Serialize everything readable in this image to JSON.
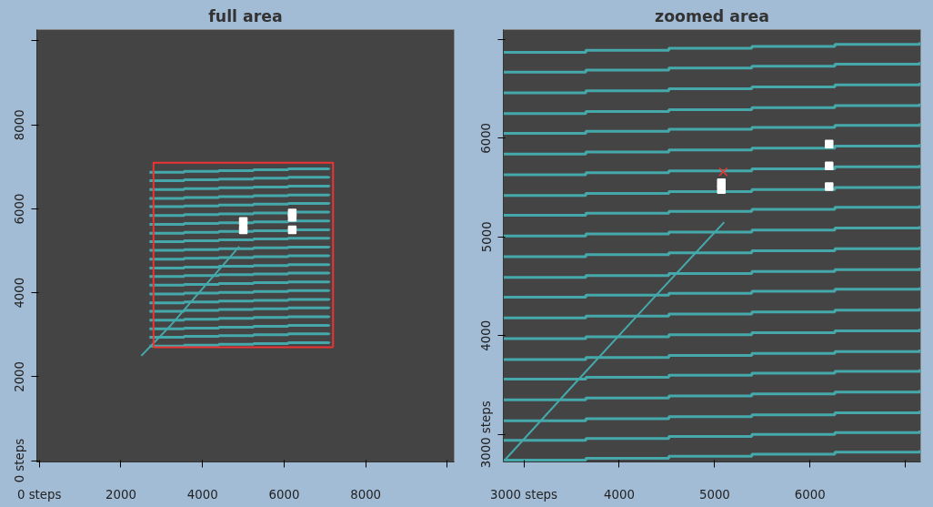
{
  "chart_data": [
    {
      "type": "step",
      "title": "full area",
      "xlim": [
        -60,
        10170
      ],
      "ylim": [
        -30,
        10270
      ],
      "xticks": [
        {
          "value": 0,
          "label": "0 steps"
        },
        2000,
        4000,
        6000,
        8000,
        {
          "value": 10000,
          "label": null
        }
      ],
      "yticks": [
        {
          "value": 0,
          "label": "0 steps"
        },
        2000,
        4000,
        6000,
        8000,
        {
          "value": 10000,
          "label": null
        }
      ],
      "series": [
        {
          "color": "#45a9ab",
          "x": [
            2700,
            3550,
            4400,
            5250,
            6100,
            7100
          ],
          "values": [
            6870,
            6890,
            6910,
            6930,
            6950,
            6970
          ]
        },
        {
          "color": "#45a9ab",
          "x": [
            2700,
            3550,
            4400,
            5250,
            6100,
            7100
          ],
          "values": [
            6670,
            6690,
            6710,
            6730,
            6750,
            6770
          ]
        },
        {
          "color": "#45a9ab",
          "x": [
            2700,
            3550,
            4400,
            5250,
            6100,
            7100
          ],
          "values": [
            6460,
            6480,
            6500,
            6520,
            6540,
            6560
          ]
        },
        {
          "color": "#45a9ab",
          "x": [
            2700,
            3550,
            4400,
            5250,
            6100,
            7100
          ],
          "values": [
            6250,
            6270,
            6290,
            6310,
            6330,
            6350
          ]
        },
        {
          "color": "#45a9ab",
          "x": [
            2700,
            3550,
            4400,
            5250,
            6100,
            7100
          ],
          "values": [
            6050,
            6070,
            6090,
            6110,
            6130,
            6150
          ]
        },
        {
          "color": "#45a9ab",
          "x": [
            2700,
            3550,
            4400,
            5250,
            6100,
            7100
          ],
          "values": [
            5840,
            5860,
            5880,
            5900,
            5920,
            5940
          ]
        },
        {
          "color": "#45a9ab",
          "x": [
            2700,
            3550,
            4400,
            5250,
            6100,
            7100
          ],
          "values": [
            5630,
            5650,
            5670,
            5690,
            5710,
            5730
          ]
        },
        {
          "color": "#45a9ab",
          "x": [
            2700,
            3550,
            4400,
            5250,
            6100,
            7100
          ],
          "values": [
            5420,
            5440,
            5460,
            5480,
            5500,
            5520
          ]
        },
        {
          "color": "#45a9ab",
          "x": [
            2700,
            3550,
            4400,
            5250,
            6100,
            7100
          ],
          "values": [
            5220,
            5240,
            5260,
            5280,
            5300,
            5320
          ]
        },
        {
          "color": "#45a9ab",
          "x": [
            2700,
            3550,
            4400,
            5250,
            6100,
            7100
          ],
          "values": [
            5010,
            5030,
            5050,
            5070,
            5090,
            5110
          ]
        },
        {
          "color": "#45a9ab",
          "x": [
            2700,
            3550,
            4400,
            5250,
            6100,
            7100
          ],
          "values": [
            4800,
            4820,
            4840,
            4860,
            4880,
            4900
          ]
        },
        {
          "color": "#45a9ab",
          "x": [
            2700,
            3550,
            4400,
            5250,
            6100,
            7100
          ],
          "values": [
            4590,
            4610,
            4630,
            4650,
            4670,
            4690
          ]
        },
        {
          "color": "#45a9ab",
          "x": [
            2700,
            3550,
            4400,
            5250,
            6100,
            7100
          ],
          "values": [
            4390,
            4410,
            4430,
            4450,
            4470,
            4490
          ]
        },
        {
          "color": "#45a9ab",
          "x": [
            2700,
            3550,
            4400,
            5250,
            6100,
            7100
          ],
          "values": [
            4180,
            4200,
            4220,
            4240,
            4260,
            4280
          ]
        },
        {
          "color": "#45a9ab",
          "x": [
            2700,
            3550,
            4400,
            5250,
            6100,
            7100
          ],
          "values": [
            3970,
            3990,
            4010,
            4030,
            4050,
            4070
          ]
        },
        {
          "color": "#45a9ab",
          "x": [
            2700,
            3550,
            4400,
            5250,
            6100,
            7100
          ],
          "values": [
            3760,
            3780,
            3800,
            3820,
            3840,
            3860
          ]
        },
        {
          "color": "#45a9ab",
          "x": [
            2700,
            3550,
            4400,
            5250,
            6100,
            7100
          ],
          "values": [
            3560,
            3580,
            3600,
            3620,
            3640,
            3660
          ]
        },
        {
          "color": "#45a9ab",
          "x": [
            2700,
            3550,
            4400,
            5250,
            6100,
            7100
          ],
          "values": [
            3350,
            3370,
            3390,
            3410,
            3430,
            3450
          ]
        },
        {
          "color": "#45a9ab",
          "x": [
            2700,
            3550,
            4400,
            5250,
            6100,
            7100
          ],
          "values": [
            3140,
            3160,
            3180,
            3200,
            3220,
            3240
          ]
        },
        {
          "color": "#45a9ab",
          "x": [
            2700,
            3550,
            4400,
            5250,
            6100,
            7100
          ],
          "values": [
            2940,
            2960,
            2980,
            3000,
            3020,
            3040
          ]
        },
        {
          "color": "#45a9ab",
          "x": [
            2700,
            3550,
            4400,
            5250,
            6100,
            7100
          ],
          "values": [
            2730,
            2750,
            2770,
            2790,
            2810,
            2830
          ]
        },
        {
          "type": "line",
          "color": "#45a9ab",
          "x": [
            2500,
            3200,
            4000,
            4900
          ],
          "values": [
            2500,
            3200,
            4100,
            5100
          ]
        },
        {
          "type": "line",
          "color": "#ee3333",
          "x": [
            2800,
            2800,
            7200,
            7200
          ],
          "values": [
            2700,
            7100,
            7100,
            2700
          ]
        },
        {
          "type": "line",
          "color": "#ee3333",
          "x": [
            2800,
            7200
          ],
          "values": [
            2700,
            2700
          ]
        },
        {
          "type": "scatter",
          "marker": "square",
          "color": "#ffffff",
          "x": [
            5000,
            5000,
            6200,
            6200,
            6200
          ],
          "values": [
            5700,
            5500,
            5900,
            5800,
            5500
          ]
        }
      ]
    },
    {
      "type": "step",
      "title": "zoomed area",
      "xlim": [
        2785,
        7160
      ],
      "ylim": [
        2722,
        7100
      ],
      "xticks": [
        {
          "value": 3000,
          "label": "3000 steps"
        },
        4000,
        5000,
        6000,
        {
          "value": 7000,
          "label": null
        }
      ],
      "yticks": [
        {
          "value": 3000,
          "label": "3000 steps"
        },
        4000,
        5000,
        6000,
        {
          "value": 7000,
          "label": null
        }
      ],
      "series": [
        {
          "color": "#45a9ab",
          "x": [
            2790,
            3650,
            4520,
            5390,
            6260,
            7150
          ],
          "values": [
            6870,
            6890,
            6910,
            6930,
            6950,
            6970
          ]
        },
        {
          "color": "#45a9ab",
          "x": [
            2790,
            3650,
            4520,
            5390,
            6260,
            7150
          ],
          "values": [
            6670,
            6690,
            6710,
            6730,
            6750,
            6770
          ]
        },
        {
          "color": "#45a9ab",
          "x": [
            2790,
            3650,
            4520,
            5390,
            6260,
            7150
          ],
          "values": [
            6460,
            6480,
            6500,
            6520,
            6540,
            6560
          ]
        },
        {
          "color": "#45a9ab",
          "x": [
            2790,
            3650,
            4520,
            5390,
            6260,
            7150
          ],
          "values": [
            6250,
            6270,
            6290,
            6310,
            6330,
            6350
          ]
        },
        {
          "color": "#45a9ab",
          "x": [
            2790,
            3650,
            4520,
            5390,
            6260,
            7150
          ],
          "values": [
            6050,
            6070,
            6090,
            6110,
            6130,
            6150
          ]
        },
        {
          "color": "#45a9ab",
          "x": [
            2790,
            3650,
            4520,
            5390,
            6260,
            7150
          ],
          "values": [
            5840,
            5860,
            5880,
            5900,
            5920,
            5940
          ]
        },
        {
          "color": "#45a9ab",
          "x": [
            2790,
            3650,
            4520,
            5390,
            6260,
            7150
          ],
          "values": [
            5630,
            5650,
            5670,
            5690,
            5710,
            5730
          ]
        },
        {
          "color": "#45a9ab",
          "x": [
            2790,
            3650,
            4520,
            5390,
            6260,
            7150
          ],
          "values": [
            5420,
            5440,
            5460,
            5480,
            5500,
            5520
          ]
        },
        {
          "color": "#45a9ab",
          "x": [
            2790,
            3650,
            4520,
            5390,
            6260,
            7150
          ],
          "values": [
            5220,
            5240,
            5260,
            5280,
            5300,
            5320
          ]
        },
        {
          "color": "#45a9ab",
          "x": [
            2790,
            3650,
            4520,
            5390,
            6260,
            7150
          ],
          "values": [
            5010,
            5030,
            5050,
            5070,
            5090,
            5110
          ]
        },
        {
          "color": "#45a9ab",
          "x": [
            2790,
            3650,
            4520,
            5390,
            6260,
            7150
          ],
          "values": [
            4800,
            4820,
            4840,
            4860,
            4880,
            4900
          ]
        },
        {
          "color": "#45a9ab",
          "x": [
            2790,
            3650,
            4520,
            5390,
            6260,
            7150
          ],
          "values": [
            4590,
            4610,
            4630,
            4650,
            4670,
            4690
          ]
        },
        {
          "color": "#45a9ab",
          "x": [
            2790,
            3650,
            4520,
            5390,
            6260,
            7150
          ],
          "values": [
            4390,
            4410,
            4430,
            4450,
            4470,
            4490
          ]
        },
        {
          "color": "#45a9ab",
          "x": [
            2790,
            3650,
            4520,
            5390,
            6260,
            7150
          ],
          "values": [
            4180,
            4200,
            4220,
            4240,
            4260,
            4280
          ]
        },
        {
          "color": "#45a9ab",
          "x": [
            2790,
            3650,
            4520,
            5390,
            6260,
            7150
          ],
          "values": [
            3970,
            3990,
            4010,
            4030,
            4050,
            4070
          ]
        },
        {
          "color": "#45a9ab",
          "x": [
            2790,
            3650,
            4520,
            5390,
            6260,
            7150
          ],
          "values": [
            3760,
            3780,
            3800,
            3820,
            3840,
            3860
          ]
        },
        {
          "color": "#45a9ab",
          "x": [
            2790,
            3650,
            4520,
            5390,
            6260,
            7150
          ],
          "values": [
            3560,
            3580,
            3600,
            3620,
            3640,
            3660
          ]
        },
        {
          "color": "#45a9ab",
          "x": [
            2790,
            3650,
            4520,
            5390,
            6260,
            7150
          ],
          "values": [
            3350,
            3370,
            3390,
            3410,
            3430,
            3450
          ]
        },
        {
          "color": "#45a9ab",
          "x": [
            2790,
            3650,
            4520,
            5390,
            6260,
            7150
          ],
          "values": [
            3140,
            3160,
            3180,
            3200,
            3220,
            3240
          ]
        },
        {
          "color": "#45a9ab",
          "x": [
            2790,
            3650,
            4520,
            5390,
            6260,
            7150
          ],
          "values": [
            2940,
            2960,
            2980,
            3000,
            3020,
            3040
          ]
        },
        {
          "color": "#45a9ab",
          "x": [
            2790,
            3650,
            4520,
            5390,
            6260,
            7150
          ],
          "values": [
            2740,
            2760,
            2780,
            2800,
            2820,
            2840
          ]
        },
        {
          "type": "line",
          "color": "#45a9ab",
          "x": [
            2800,
            3500,
            4300,
            5100
          ],
          "values": [
            2740,
            3480,
            4320,
            5150
          ]
        },
        {
          "type": "scatter",
          "marker": "square",
          "color": "#ffffff",
          "x": [
            5070,
            5070,
            6200,
            6200,
            6200
          ],
          "values": [
            5550,
            5480,
            5940,
            5720,
            5510
          ]
        },
        {
          "type": "scatter",
          "marker": "cross",
          "color": "#ee3333",
          "x": [
            5090
          ],
          "values": [
            5660
          ]
        }
      ]
    }
  ]
}
